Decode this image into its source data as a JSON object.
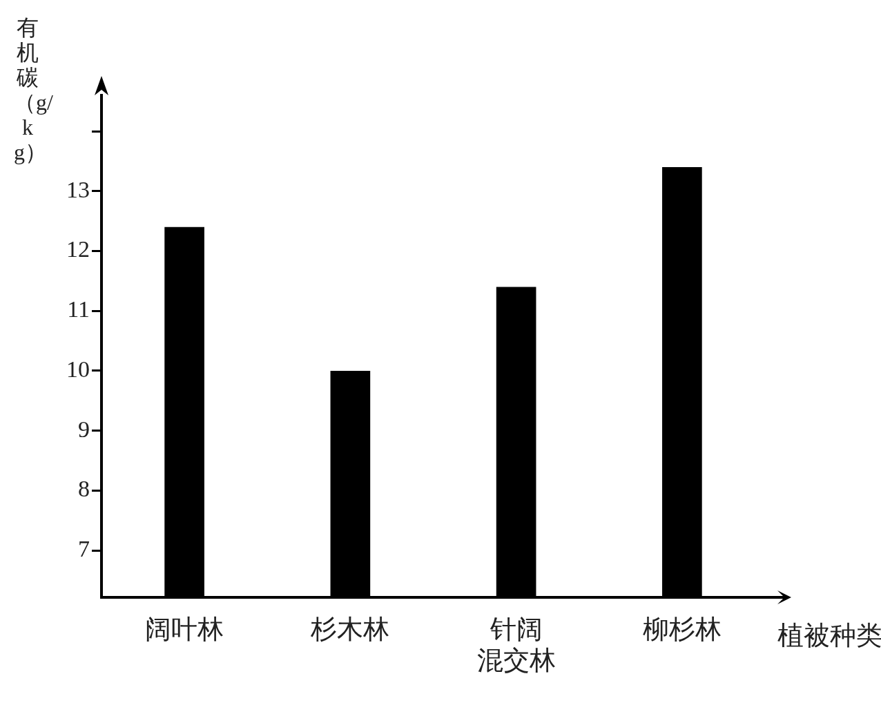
{
  "chart_data": {
    "type": "bar",
    "ylabel": "有机碳（g/kg）",
    "xlabel": "植被种类",
    "categories": [
      "阔叶林",
      "杉木林",
      "针阔混交林",
      "柳杉林"
    ],
    "values": [
      12.4,
      10.0,
      11.4,
      13.4
    ],
    "color": "#000000",
    "ylim": [
      6.22,
      14.6
    ],
    "yticks": [
      7,
      8,
      9,
      10,
      11,
      12,
      13,
      {
        "value": 14,
        "label": null
      }
    ],
    "grid": false,
    "legend": false
  }
}
